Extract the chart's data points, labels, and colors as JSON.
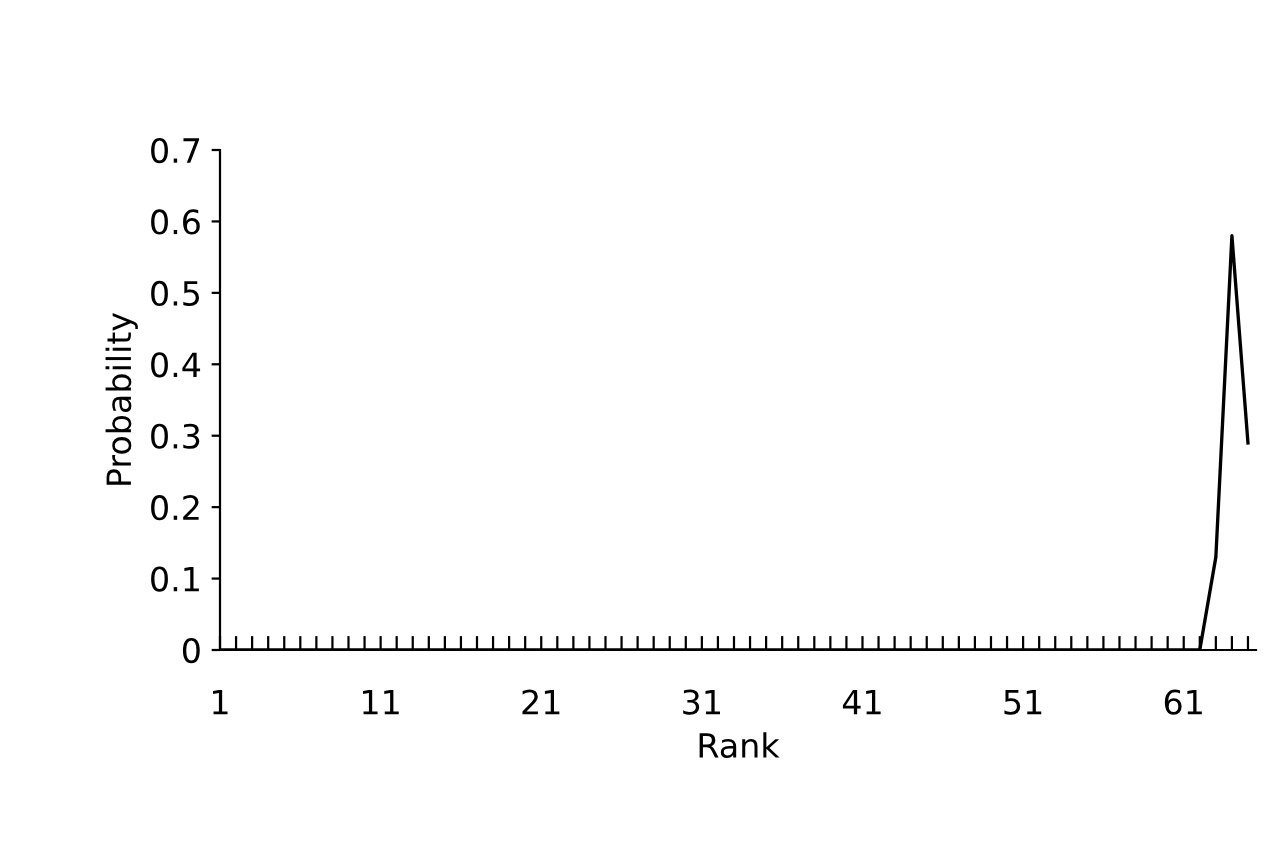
{
  "chart_data": {
    "type": "line",
    "xlabel": "Rank",
    "ylabel": "Probability",
    "x": [
      1,
      2,
      3,
      4,
      5,
      6,
      7,
      8,
      9,
      10,
      11,
      12,
      13,
      14,
      15,
      16,
      17,
      18,
      19,
      20,
      21,
      22,
      23,
      24,
      25,
      26,
      27,
      28,
      29,
      30,
      31,
      32,
      33,
      34,
      35,
      36,
      37,
      38,
      39,
      40,
      41,
      42,
      43,
      44,
      45,
      46,
      47,
      48,
      49,
      50,
      51,
      52,
      53,
      54,
      55,
      56,
      57,
      58,
      59,
      60,
      61,
      62,
      63,
      64,
      65
    ],
    "series": [
      {
        "color": "#000000",
        "values": [
          0,
          0,
          0,
          0,
          0,
          0,
          0,
          0,
          0,
          0,
          0,
          0,
          0,
          0,
          0,
          0,
          0,
          0,
          0,
          0,
          0,
          0,
          0,
          0,
          0,
          0,
          0,
          0,
          0,
          0,
          0,
          0,
          0,
          0,
          0,
          0,
          0,
          0,
          0,
          0,
          0,
          0,
          0,
          0,
          0,
          0,
          0,
          0,
          0,
          0,
          0,
          0,
          0,
          0,
          0,
          0,
          0,
          0,
          0,
          0,
          0,
          0,
          0.13,
          0.58,
          0.29
        ]
      }
    ],
    "xlim": [
      1,
      65.5
    ],
    "xticks": [
      1,
      {
        "value": 2,
        "label": null
      },
      {
        "value": 3,
        "label": null
      },
      {
        "value": 4,
        "label": null
      },
      {
        "value": 5,
        "label": null
      },
      {
        "value": 6,
        "label": null
      },
      {
        "value": 7,
        "label": null
      },
      {
        "value": 8,
        "label": null
      },
      {
        "value": 9,
        "label": null
      },
      {
        "value": 10,
        "label": null
      },
      11,
      {
        "value": 12,
        "label": null
      },
      {
        "value": 13,
        "label": null
      },
      {
        "value": 14,
        "label": null
      },
      {
        "value": 15,
        "label": null
      },
      {
        "value": 16,
        "label": null
      },
      {
        "value": 17,
        "label": null
      },
      {
        "value": 18,
        "label": null
      },
      {
        "value": 19,
        "label": null
      },
      {
        "value": 20,
        "label": null
      },
      21,
      {
        "value": 22,
        "label": null
      },
      {
        "value": 23,
        "label": null
      },
      {
        "value": 24,
        "label": null
      },
      {
        "value": 25,
        "label": null
      },
      {
        "value": 26,
        "label": null
      },
      {
        "value": 27,
        "label": null
      },
      {
        "value": 28,
        "label": null
      },
      {
        "value": 29,
        "label": null
      },
      {
        "value": 30,
        "label": null
      },
      31,
      {
        "value": 32,
        "label": null
      },
      {
        "value": 33,
        "label": null
      },
      {
        "value": 34,
        "label": null
      },
      {
        "value": 35,
        "label": null
      },
      {
        "value": 36,
        "label": null
      },
      {
        "value": 37,
        "label": null
      },
      {
        "value": 38,
        "label": null
      },
      {
        "value": 39,
        "label": null
      },
      {
        "value": 40,
        "label": null
      },
      41,
      {
        "value": 42,
        "label": null
      },
      {
        "value": 43,
        "label": null
      },
      {
        "value": 44,
        "label": null
      },
      {
        "value": 45,
        "label": null
      },
      {
        "value": 46,
        "label": null
      },
      {
        "value": 47,
        "label": null
      },
      {
        "value": 48,
        "label": null
      },
      {
        "value": 49,
        "label": null
      },
      {
        "value": 50,
        "label": null
      },
      51,
      {
        "value": 52,
        "label": null
      },
      {
        "value": 53,
        "label": null
      },
      {
        "value": 54,
        "label": null
      },
      {
        "value": 55,
        "label": null
      },
      {
        "value": 56,
        "label": null
      },
      {
        "value": 57,
        "label": null
      },
      {
        "value": 58,
        "label": null
      },
      {
        "value": 59,
        "label": null
      },
      {
        "value": 60,
        "label": null
      },
      61,
      {
        "value": 62,
        "label": null
      },
      {
        "value": 63,
        "label": null
      },
      {
        "value": 64,
        "label": null
      },
      {
        "value": 65,
        "label": null
      }
    ],
    "ylim": [
      0,
      0.7
    ],
    "yticks": [
      0,
      0.1,
      0.2,
      0.3,
      0.4,
      0.5,
      0.6,
      0.7
    ],
    "grid": false,
    "legend": false,
    "marker": "none",
    "line_style": "solid"
  }
}
